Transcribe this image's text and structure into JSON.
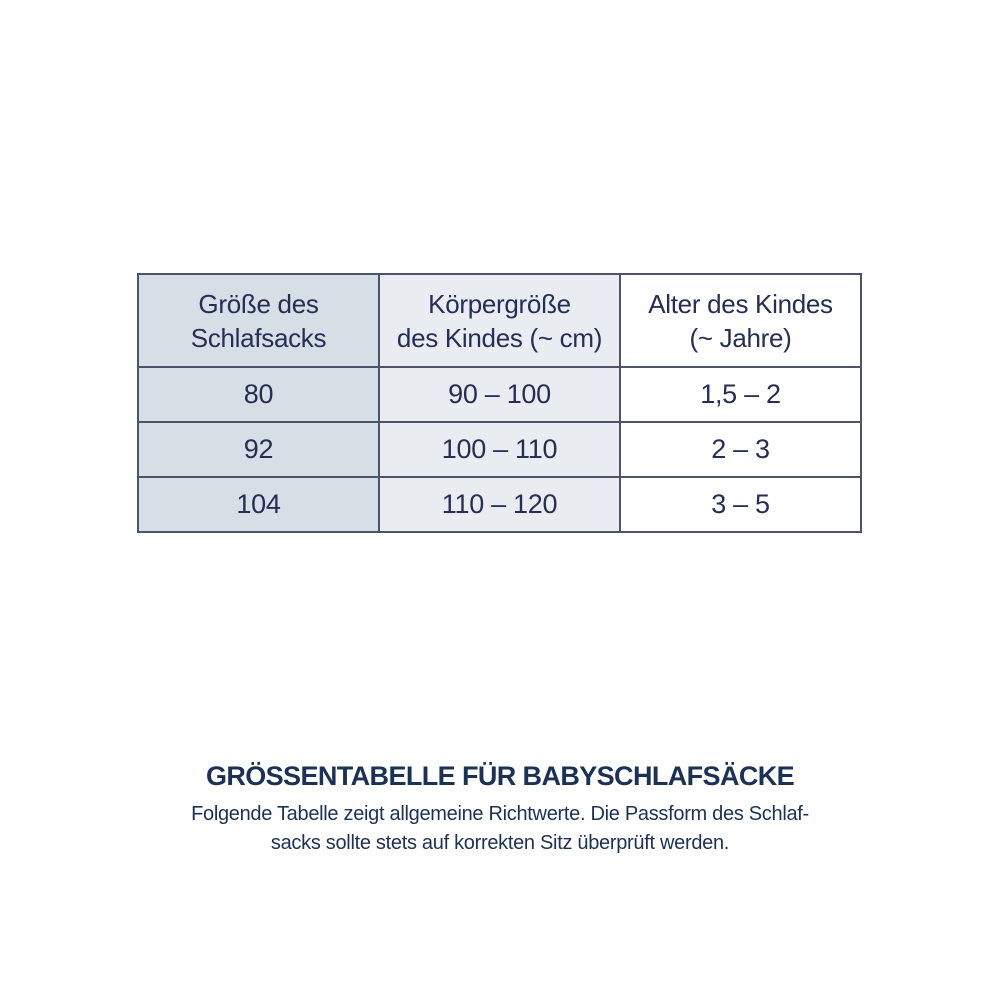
{
  "chart_data": {
    "type": "table",
    "title": "GRÖSSENTABELLE FÜR BABYSCHLAFSÄCKE",
    "columns": [
      "Größe des Schlafsacks",
      "Körpergröße des Kindes (~ cm)",
      "Alter des Kindes (~ Jahre)"
    ],
    "rows": [
      [
        "80",
        "90 – 100",
        "1,5 – 2"
      ],
      [
        "92",
        "100 – 110",
        "2 – 3"
      ],
      [
        "104",
        "110 – 120",
        "3 – 5"
      ]
    ],
    "notes": "Folgende Tabelle zeigt allgemeine Richtwerte. Die Passform des Schlafsacks sollte stets auf korrekten Sitz überprüft werden."
  },
  "table": {
    "headers": [
      {
        "line1": "Größe des",
        "line2": "Schlafsacks"
      },
      {
        "line1": "Körpergröße",
        "line2": "des Kindes (~ cm)"
      },
      {
        "line1": "Alter des Kindes",
        "line2": "(~ Jahre)"
      }
    ],
    "colors": {
      "col1_bg": "#d6dee6",
      "col2_bg": "#e9edf2",
      "col3_bg": "#ffffff",
      "border": "#4e5468",
      "text": "#262e55"
    }
  },
  "caption": {
    "title": "GRÖSSENTABELLE FÜR BABYSCHLAFSÄCKE",
    "lines": [
      "Folgende Tabelle zeigt allgemeine Richtwerte. Die Passform des Schlaf-",
      "sacks sollte stets auf korrekten Sitz überprüft werden."
    ],
    "text_color": "#1c3156"
  }
}
